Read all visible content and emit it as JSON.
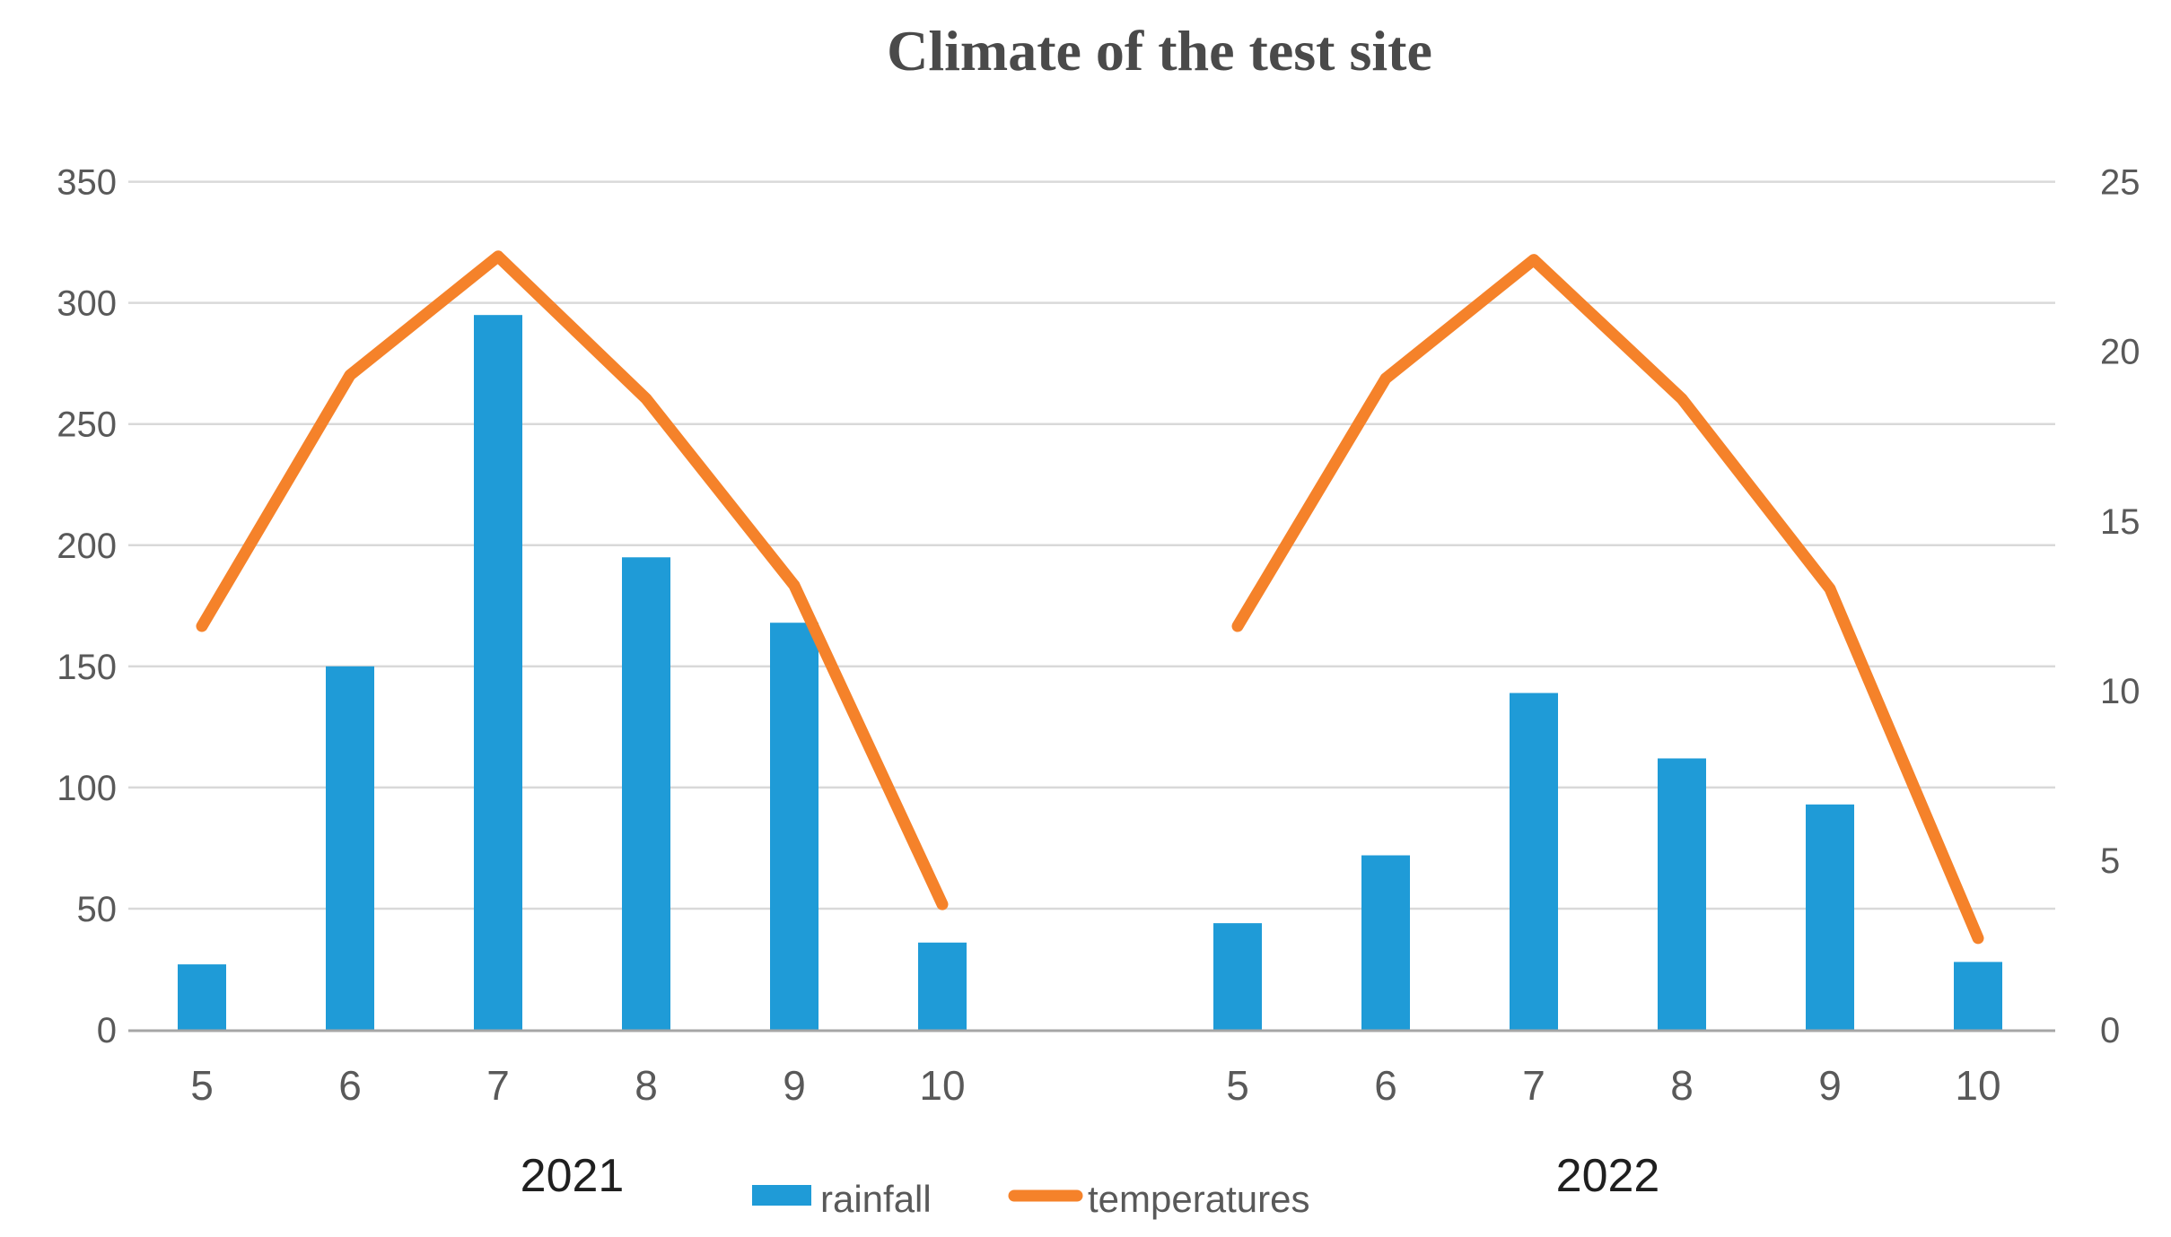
{
  "title": "Climate of the test site",
  "legend": {
    "rainfall_label": "rainfall",
    "temperatures_label": "temperatures",
    "position": "bottom-center"
  },
  "colors": {
    "rainfall_bar": "#1f9bd7",
    "temperature_line": "#f5822a",
    "gridline": "#d9d9d9",
    "axis_line": "#a6a6a6",
    "tick_label": "#595959",
    "year_label": "#1f1f1f",
    "title": "#4a4a4a"
  },
  "chart_data": {
    "type": "bar",
    "subtype": "combo-bar-line-dual-axis",
    "title": "Climate of the test site",
    "xlabel": "",
    "ylabel_left": "",
    "ylabel_right": "",
    "grid": true,
    "left_axis": {
      "ticks": [
        0,
        50,
        100,
        150,
        200,
        250,
        300,
        350
      ],
      "range": [
        0,
        350
      ]
    },
    "right_axis": {
      "ticks": [
        0,
        5,
        10,
        15,
        20,
        25
      ],
      "range": [
        0,
        25
      ]
    },
    "groups": [
      {
        "year": "2021",
        "month_labels": [
          "5",
          "6",
          "7",
          "8",
          "9",
          "10"
        ],
        "rainfall": [
          27,
          150,
          295,
          195,
          168,
          36
        ],
        "temperatures": [
          11.9,
          19.3,
          22.8,
          18.6,
          13.1,
          3.7
        ]
      },
      {
        "year": "2022",
        "month_labels": [
          "5",
          "6",
          "7",
          "8",
          "9",
          "10"
        ],
        "rainfall": [
          44,
          72,
          139,
          112,
          93,
          28
        ],
        "temperatures": [
          11.9,
          19.2,
          22.7,
          18.6,
          13.0,
          2.7
        ]
      }
    ],
    "series": [
      {
        "name": "rainfall",
        "type": "bar",
        "axis": "left"
      },
      {
        "name": "temperatures",
        "type": "line",
        "axis": "right"
      }
    ],
    "legend_position": "bottom"
  }
}
